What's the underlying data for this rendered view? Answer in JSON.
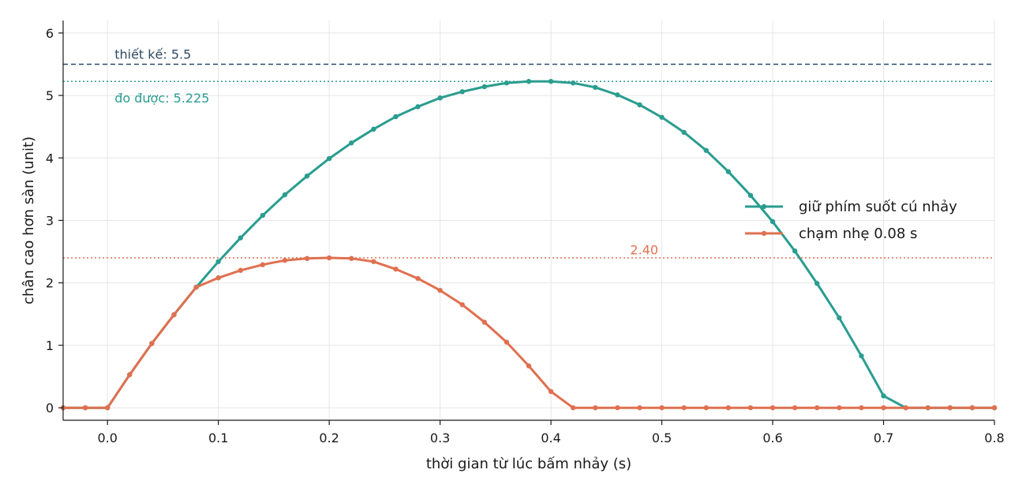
{
  "chart_data": {
    "type": "line",
    "xlabel": "thời gian từ lúc bấm nhảy (s)",
    "ylabel": "chân cao hơn sàn (unit)",
    "xlim": [
      -0.04,
      0.8
    ],
    "ylim": [
      -0.2,
      6.2
    ],
    "xticks": [
      0.0,
      0.1,
      0.2,
      0.3,
      0.4,
      0.5,
      0.6,
      0.7,
      0.8
    ],
    "xtick_labels": [
      "0.0",
      "0.1",
      "0.2",
      "0.3",
      "0.4",
      "0.5",
      "0.6",
      "0.7",
      "0.8"
    ],
    "yticks": [
      0,
      1,
      2,
      3,
      4,
      5,
      6
    ],
    "ytick_labels": [
      "0",
      "1",
      "2",
      "3",
      "4",
      "5",
      "6"
    ],
    "grid": true,
    "legend_position": "right",
    "series": [
      {
        "name": "giữ phím suốt cú nhảy",
        "color": "#2a9d8f",
        "x": [
          -0.04,
          -0.02,
          0.0,
          0.02,
          0.04,
          0.06,
          0.08,
          0.1,
          0.12,
          0.14,
          0.16,
          0.18,
          0.2,
          0.22,
          0.24,
          0.26,
          0.28,
          0.3,
          0.32,
          0.34,
          0.36,
          0.38,
          0.4,
          0.42,
          0.44,
          0.46,
          0.48,
          0.5,
          0.52,
          0.54,
          0.56,
          0.58,
          0.6,
          0.62,
          0.64,
          0.66,
          0.68,
          0.7,
          0.72,
          0.74,
          0.76,
          0.78,
          0.8
        ],
        "y": [
          0,
          0,
          0,
          0.53,
          1.03,
          1.49,
          1.93,
          2.34,
          2.72,
          3.08,
          3.41,
          3.71,
          3.99,
          4.24,
          4.46,
          4.66,
          4.82,
          4.96,
          5.06,
          5.14,
          5.2,
          5.225,
          5.225,
          5.2,
          5.13,
          5.01,
          4.85,
          4.65,
          4.41,
          4.12,
          3.78,
          3.4,
          2.98,
          2.51,
          1.99,
          1.44,
          0.83,
          0.19,
          0,
          0,
          0,
          0,
          0
        ]
      },
      {
        "name": "chạm nhẹ 0.08 s",
        "color": "#e07050",
        "x": [
          -0.04,
          -0.02,
          0.0,
          0.02,
          0.04,
          0.06,
          0.08,
          0.1,
          0.12,
          0.14,
          0.16,
          0.18,
          0.2,
          0.22,
          0.24,
          0.26,
          0.28,
          0.3,
          0.32,
          0.34,
          0.36,
          0.38,
          0.4,
          0.42,
          0.44,
          0.46,
          0.48,
          0.5,
          0.52,
          0.54,
          0.56,
          0.58,
          0.6,
          0.62,
          0.64,
          0.66,
          0.68,
          0.7,
          0.72,
          0.74,
          0.76,
          0.78,
          0.8
        ],
        "y": [
          0,
          0,
          0,
          0.53,
          1.03,
          1.49,
          1.93,
          2.08,
          2.2,
          2.29,
          2.36,
          2.39,
          2.4,
          2.39,
          2.34,
          2.22,
          2.07,
          1.88,
          1.65,
          1.37,
          1.05,
          0.67,
          0.26,
          0,
          0,
          0,
          0,
          0,
          0,
          0,
          0,
          0,
          0,
          0,
          0,
          0,
          0,
          0,
          0,
          0,
          0,
          0,
          0
        ]
      }
    ],
    "reference_lines": [
      {
        "y": 5.5,
        "label": "thiết kế: 5.5",
        "color": "#2e4a62",
        "style": "dashed",
        "label_x": 0.005,
        "label_y": 5.65
      },
      {
        "y": 5.225,
        "label": "đo được: 5.225",
        "color": "#2a9d8f",
        "style": "dotted",
        "label_x": 0.005,
        "label_y": 4.95
      },
      {
        "y": 2.4,
        "label": "2.40",
        "color": "#e07050",
        "style": "dotted",
        "label_x": 0.47,
        "label_y": 2.52
      }
    ]
  }
}
